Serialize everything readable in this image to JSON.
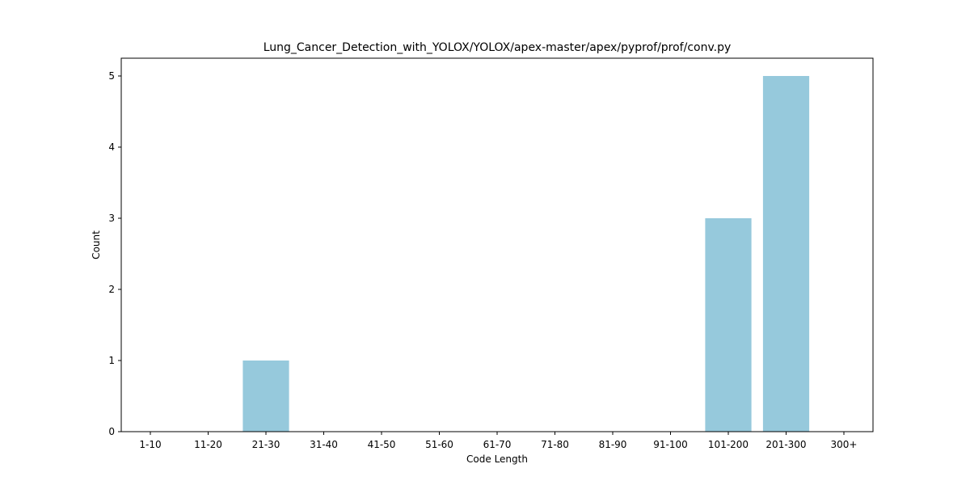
{
  "chart_data": {
    "type": "bar",
    "title": "Lung_Cancer_Detection_with_YOLOX/YOLOX/apex-master/apex/pyprof/prof/conv.py",
    "xlabel": "Code Length",
    "ylabel": "Count",
    "categories": [
      "1-10",
      "11-20",
      "21-30",
      "31-40",
      "41-50",
      "51-60",
      "61-70",
      "71-80",
      "81-90",
      "91-100",
      "101-200",
      "201-300",
      "300+"
    ],
    "values": [
      0,
      0,
      1,
      0,
      0,
      0,
      0,
      0,
      0,
      0,
      3,
      5,
      0
    ],
    "ylim": [
      0,
      5.25
    ],
    "yticks": [
      0,
      1,
      2,
      3,
      4,
      5
    ],
    "bar_color": "#96c9dc",
    "grid": false,
    "legend": "none"
  }
}
